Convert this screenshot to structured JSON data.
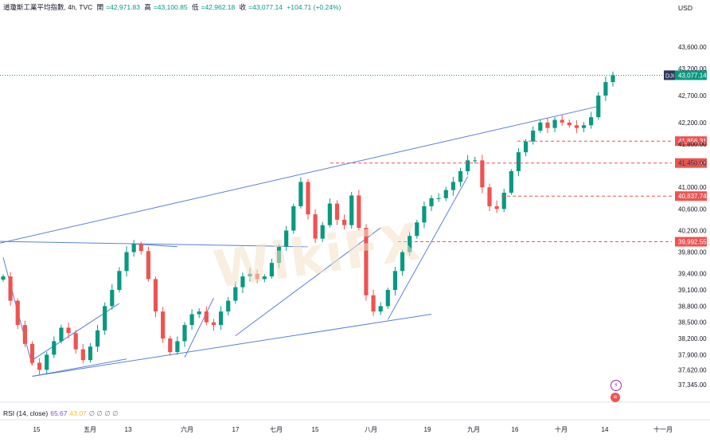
{
  "legend": {
    "symbol": "道瓊斯工業平均指數, 4h, TVC",
    "open_label": "開",
    "open": "=42,971.83",
    "high_label": "高",
    "high": "=43,100.85",
    "low_label": "低",
    "low": "=42,962.18",
    "close_label": "收",
    "close": "=43,077.14",
    "change": "+104.71 (+0.24%)"
  },
  "currency": "USD",
  "rsi": {
    "label": "RSI (14, close)",
    "value1": "65.67",
    "value2": "43.07",
    "placeholders": "∅ ∅ ∅ ∅"
  },
  "watermark": "WikiFX",
  "colors": {
    "up": "#089981",
    "down": "#ef5350",
    "trendline": "#5b7fd6",
    "level_line": "#ef5350",
    "price_line": "#089981"
  },
  "chart_data": {
    "type": "candlestick",
    "title": "道瓊斯工業平均指數, 4h, TVC",
    "ylabel": "USD",
    "ylim": [
      37150,
      43750
    ],
    "x_tick_labels": [
      "15",
      "五月",
      "13",
      "六月",
      "17",
      "七月",
      "15",
      "八月",
      "19",
      "九月",
      "16",
      "十月",
      "14",
      "十一月"
    ],
    "y_tick_labels": [
      "43,600.00",
      "43,200.00",
      "42,700.00",
      "42,200.00",
      "41,800.00",
      "41,450.00",
      "41,000.00",
      "40,600.00",
      "40,200.00",
      "39,800.00",
      "39,400.00",
      "39,100.00",
      "38,800.00",
      "38,500.00",
      "38,200.00",
      "37,900.00",
      "37,620.00",
      "37,345.00"
    ],
    "current_price": {
      "label": "DJI",
      "value": "43,077.14"
    },
    "price_levels": [
      "41,856.31",
      "41,450.26",
      "40,837.74",
      "39,992.55"
    ],
    "closes": [
      39350,
      38900,
      38450,
      38100,
      37750,
      37620,
      37900,
      38150,
      38400,
      38300,
      38000,
      37800,
      38050,
      38350,
      38800,
      39100,
      39450,
      39800,
      39950,
      39820,
      39300,
      38700,
      38200,
      37950,
      38150,
      38450,
      38650,
      38700,
      38500,
      38450,
      38700,
      38900,
      39150,
      39350,
      39400,
      39300,
      39350,
      39600,
      39900,
      40200,
      40650,
      41100,
      40500,
      40050,
      40300,
      40700,
      40400,
      40300,
      40850,
      40250,
      39000,
      38700,
      38800,
      39100,
      39450,
      39800,
      40100,
      40350,
      40650,
      40800,
      40800,
      40950,
      41100,
      41300,
      41500,
      41500,
      41000,
      40650,
      40600,
      40900,
      41300,
      41650,
      41850,
      42050,
      42200,
      42100,
      42250,
      42200,
      42150,
      42100,
      42150,
      42300,
      42700,
      42950,
      43077.14
    ]
  }
}
